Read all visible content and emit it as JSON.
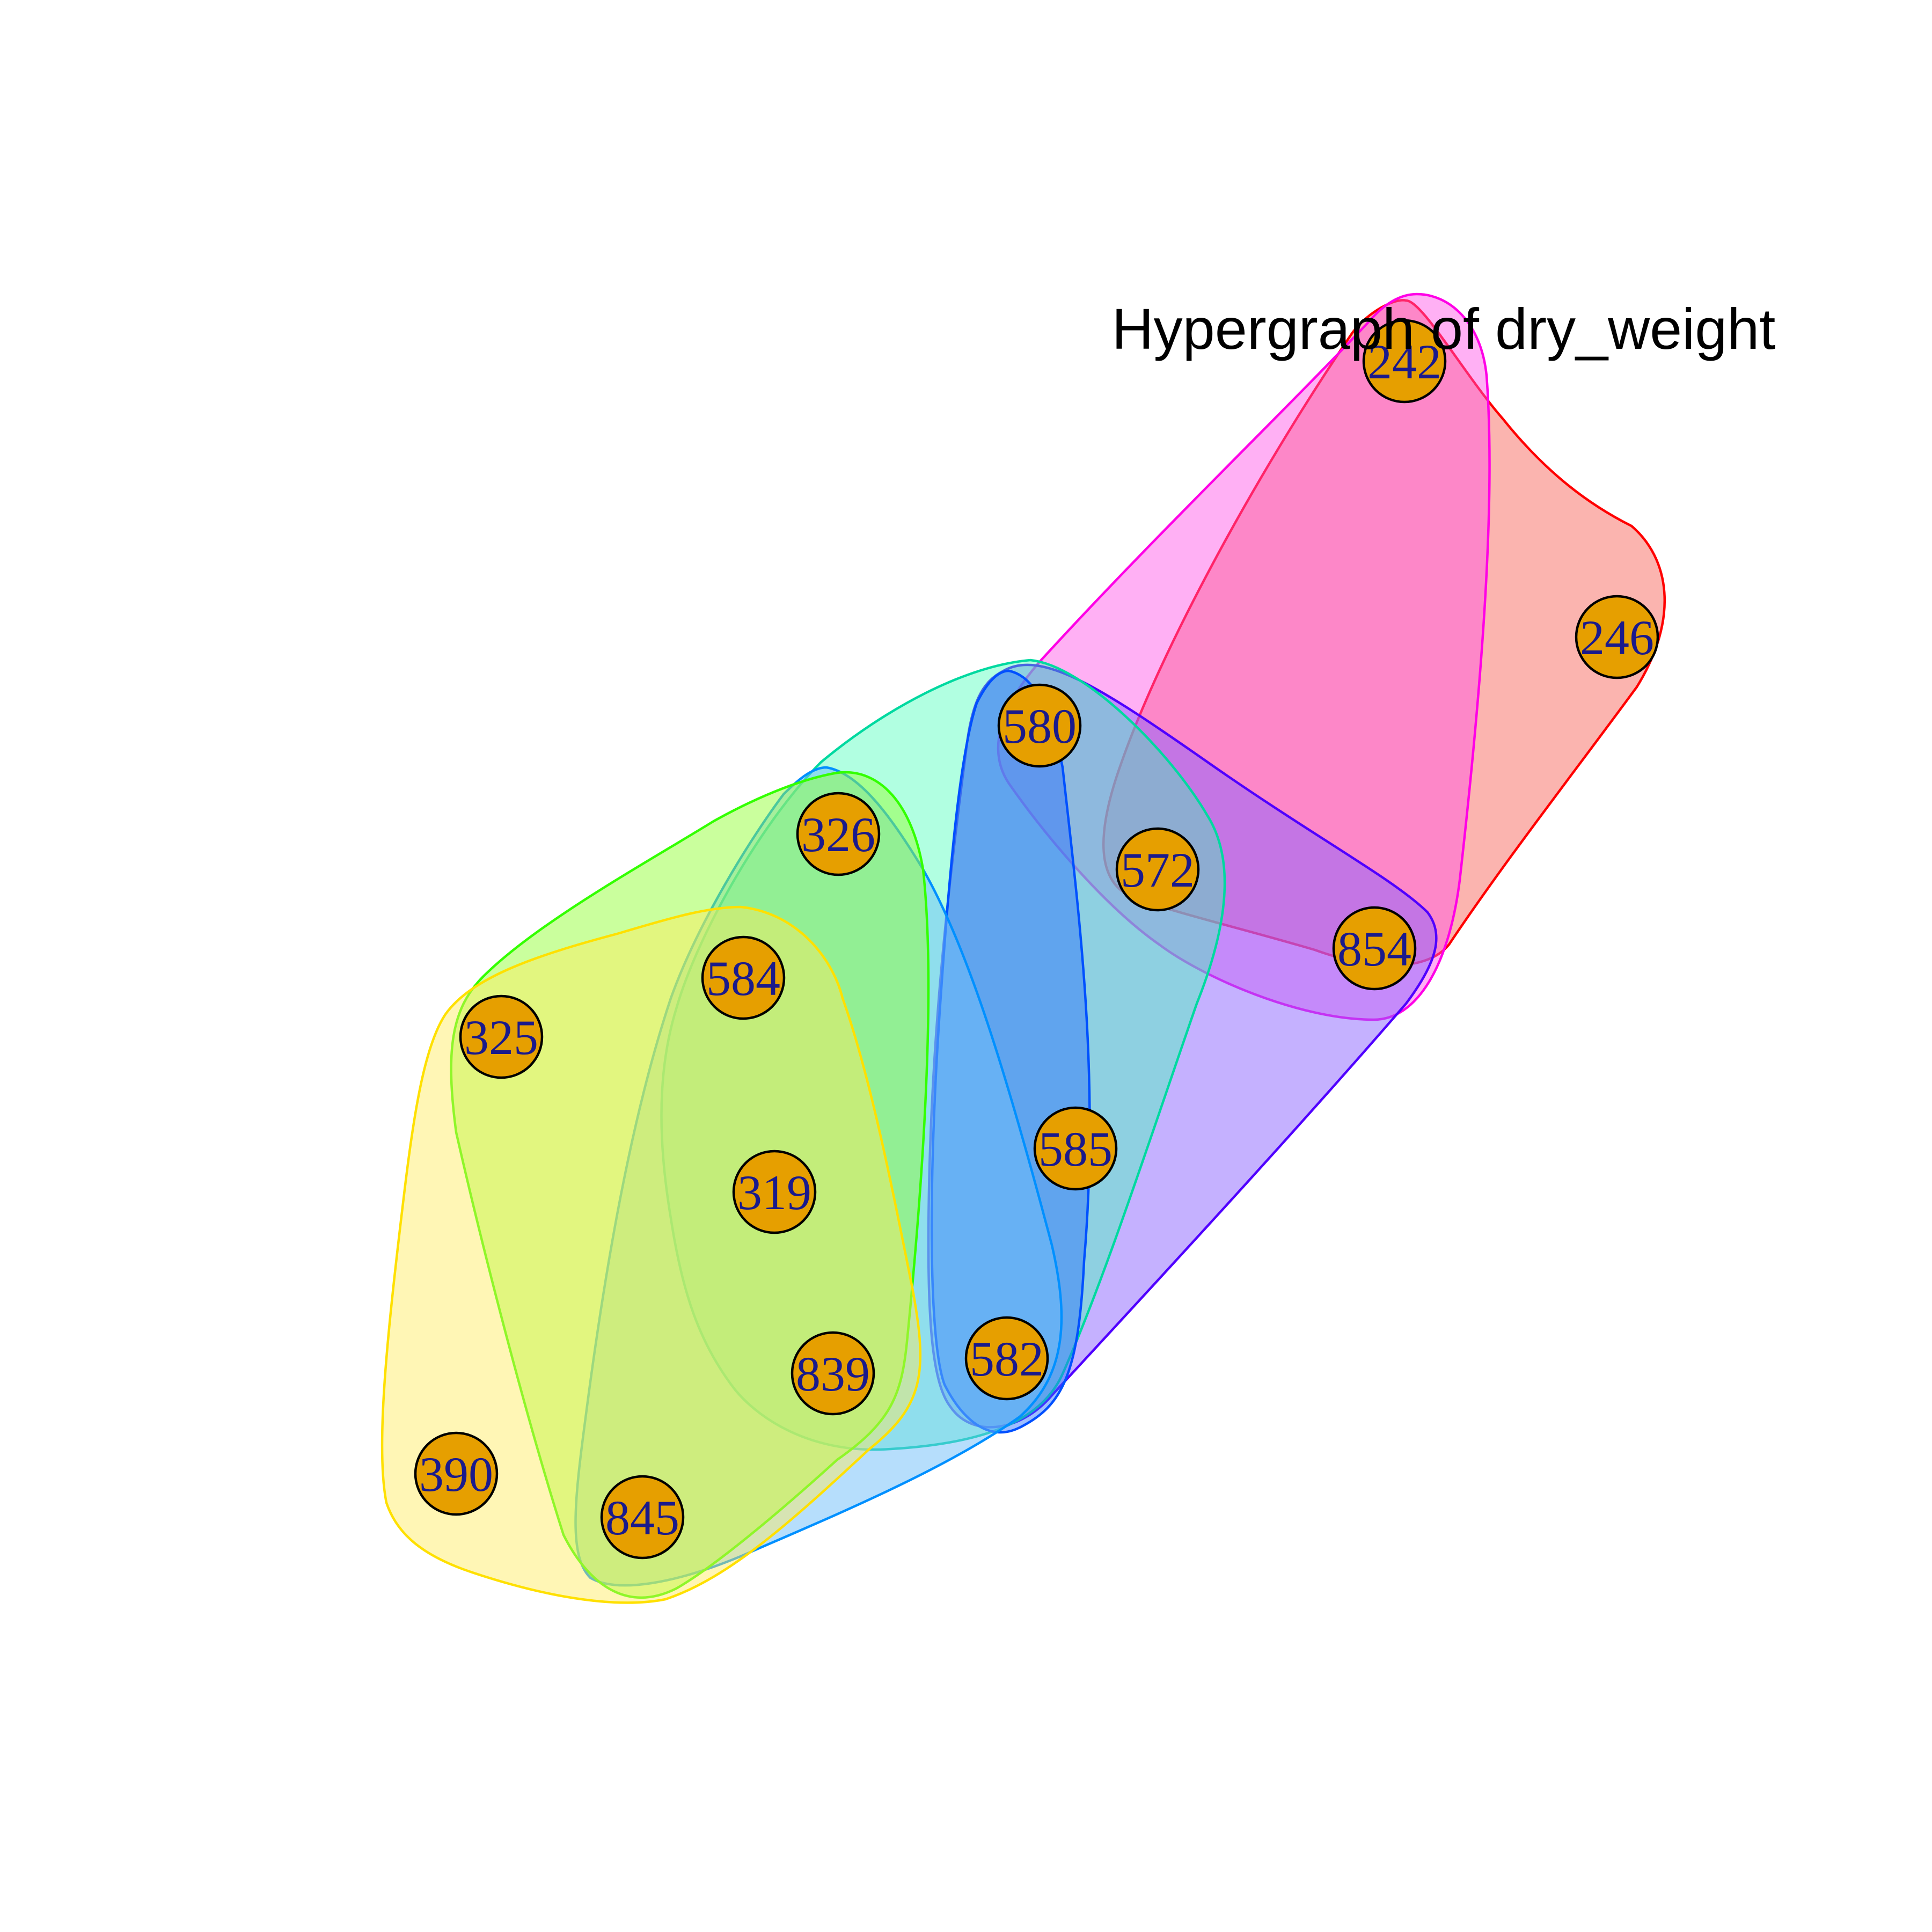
{
  "title": "Hypergraph of dry_weight",
  "colors": {
    "vertex_fill": "#E69F00",
    "vertex_label": "#1A1A8C"
  },
  "vertices": [
    {
      "id": "242",
      "label": "242"
    },
    {
      "id": "246",
      "label": "246"
    },
    {
      "id": "580",
      "label": "580"
    },
    {
      "id": "572",
      "label": "572"
    },
    {
      "id": "854",
      "label": "854"
    },
    {
      "id": "326",
      "label": "326"
    },
    {
      "id": "584",
      "label": "584"
    },
    {
      "id": "325",
      "label": "325"
    },
    {
      "id": "585",
      "label": "585"
    },
    {
      "id": "319",
      "label": "319"
    },
    {
      "id": "839",
      "label": "839"
    },
    {
      "id": "582",
      "label": "582"
    },
    {
      "id": "390",
      "label": "390"
    },
    {
      "id": "845",
      "label": "845"
    }
  ],
  "hyperedges": [
    {
      "id": "e-red",
      "stroke": "#FF0000",
      "fill": "rgba(248,118,109,0.55)",
      "members": [
        "242",
        "246",
        "572",
        "854"
      ]
    },
    {
      "id": "e-magenta",
      "stroke": "#FF00E6",
      "fill": "rgba(255,80,230,0.45)",
      "members": [
        "242",
        "580",
        "572",
        "854"
      ]
    },
    {
      "id": "e-violet",
      "stroke": "#5000FF",
      "fill": "rgba(140,100,255,0.5)",
      "members": [
        "580",
        "572",
        "854",
        "585",
        "582"
      ]
    },
    {
      "id": "e-teal",
      "stroke": "#00D9A0",
      "fill": "rgba(60,255,180,0.4)",
      "members": [
        "580",
        "572",
        "326",
        "584",
        "319",
        "839",
        "585",
        "582"
      ]
    },
    {
      "id": "e-blue",
      "stroke": "#0050FF",
      "fill": "rgba(40,110,255,0.45)",
      "members": [
        "580",
        "585",
        "582"
      ]
    },
    {
      "id": "e-sky",
      "stroke": "#0090FF",
      "fill": "rgba(110,190,250,0.5)",
      "members": [
        "326",
        "584",
        "319",
        "839",
        "845"
      ]
    },
    {
      "id": "e-green",
      "stroke": "#33FF00",
      "fill": "rgba(150,255,60,0.5)",
      "members": [
        "326",
        "584",
        "325",
        "319",
        "839",
        "845"
      ]
    },
    {
      "id": "e-yellow",
      "stroke": "#FFE000",
      "fill": "rgba(255,235,90,0.45)",
      "members": [
        "584",
        "325",
        "319",
        "839",
        "390",
        "845"
      ]
    }
  ]
}
